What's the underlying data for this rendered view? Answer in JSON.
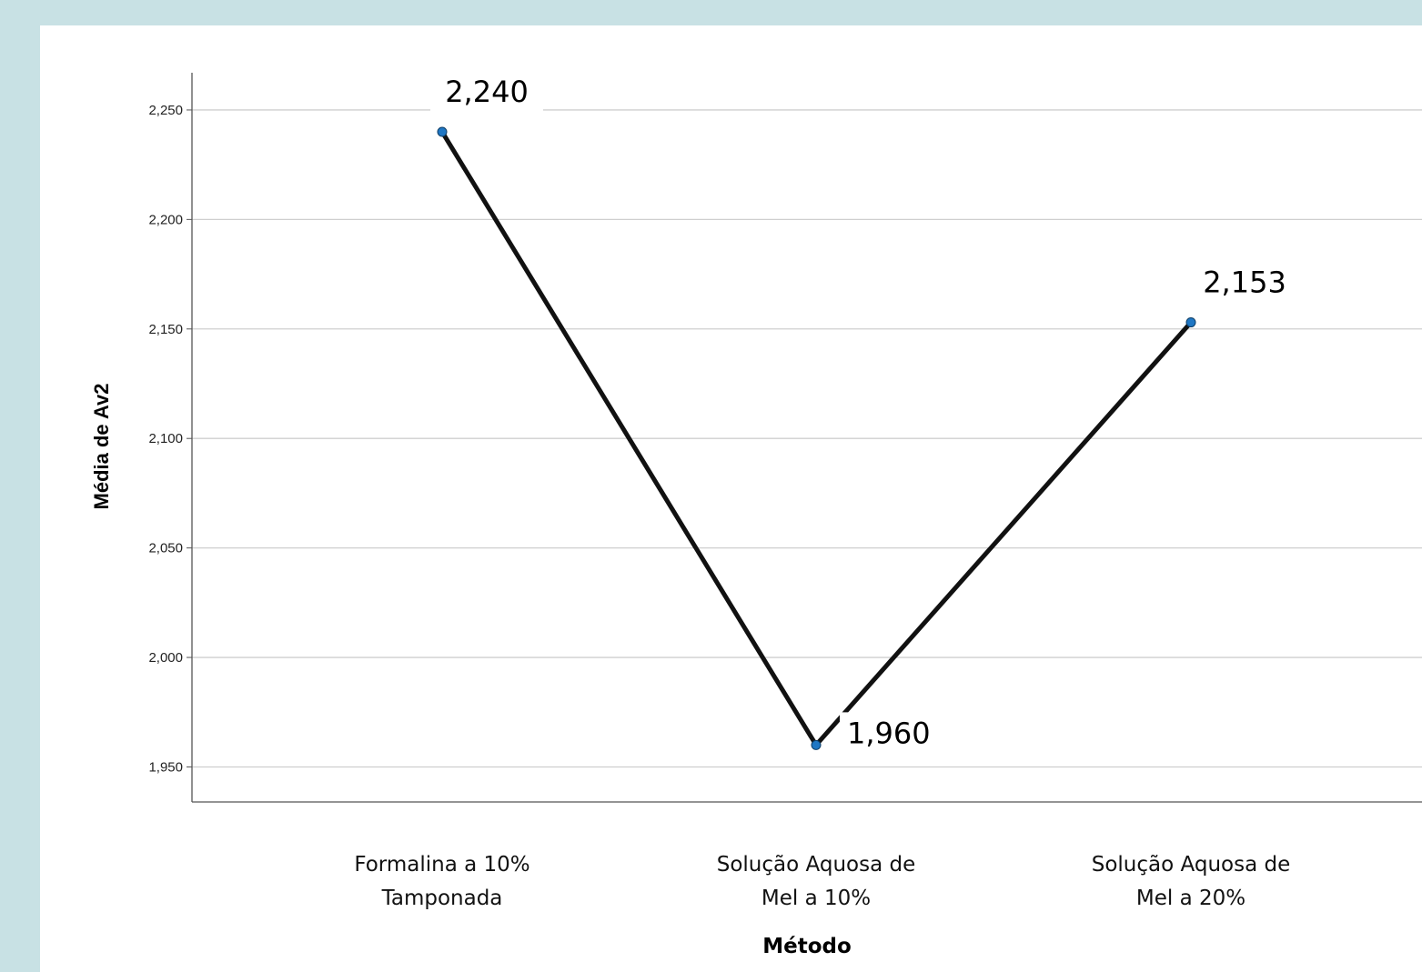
{
  "chart_data": {
    "type": "line",
    "xlabel": "Método",
    "ylabel": "Média de Av2",
    "ylim": [
      1.934,
      2.267
    ],
    "grid": true,
    "yticks": [
      {
        "value": 1.95,
        "label": "1,950"
      },
      {
        "value": 2.0,
        "label": "2,000"
      },
      {
        "value": 2.05,
        "label": "2,050"
      },
      {
        "value": 2.1,
        "label": "2,100"
      },
      {
        "value": 2.15,
        "label": "2,150"
      },
      {
        "value": 2.2,
        "label": "2,200"
      },
      {
        "value": 2.25,
        "label": "2,250"
      }
    ],
    "categories": [
      [
        "Formalina a 10%",
        "Tamponada"
      ],
      [
        "Solução Aquosa de",
        "Mel a 10%"
      ],
      [
        "Solução Aquosa de",
        "Mel a 20%"
      ]
    ],
    "series": [
      {
        "values": [
          2.24,
          1.96,
          2.153
        ],
        "data_labels": [
          "2,240",
          "1,960",
          "2,153"
        ],
        "line_color": "#111111",
        "marker_color": "#1f77c4"
      }
    ]
  }
}
